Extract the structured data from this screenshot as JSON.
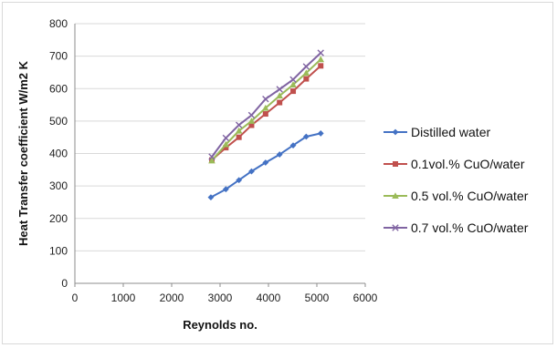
{
  "chart_data": {
    "type": "line",
    "title": "",
    "xlabel": "Reynolds no.",
    "ylabel": "Heat Transfer coefficient W/m2 K",
    "xlim": [
      0,
      6000
    ],
    "ylim": [
      0,
      800
    ],
    "xticks": [
      0,
      1000,
      2000,
      3000,
      4000,
      5000,
      6000
    ],
    "yticks": [
      0,
      100,
      200,
      300,
      400,
      500,
      600,
      700,
      800
    ],
    "grid": "horizontal",
    "legend_position": "right",
    "series": [
      {
        "name": "Distilled water",
        "color": "#4472c4",
        "marker": "diamond",
        "x": [
          2810,
          3120,
          3390,
          3650,
          3940,
          4230,
          4510,
          4780,
          5080
        ],
        "y": [
          265,
          290,
          318,
          345,
          372,
          397,
          425,
          452,
          462
        ]
      },
      {
        "name": "0.1vol.% CuO/water",
        "color": "#c0504d",
        "marker": "square",
        "x": [
          2830,
          3120,
          3390,
          3650,
          3940,
          4230,
          4510,
          4780,
          5080
        ],
        "y": [
          380,
          418,
          450,
          487,
          522,
          557,
          592,
          630,
          670
        ]
      },
      {
        "name": "0.5 vol.% CuO/water",
        "color": "#9bbb59",
        "marker": "triangle",
        "x": [
          2830,
          3120,
          3390,
          3650,
          3940,
          4230,
          4510,
          4780,
          5080
        ],
        "y": [
          378,
          428,
          470,
          500,
          540,
          578,
          612,
          648,
          690
        ]
      },
      {
        "name": "0.7 vol.% CuO/water",
        "color": "#8064a2",
        "marker": "x",
        "x": [
          2830,
          3120,
          3390,
          3650,
          3940,
          4230,
          4510,
          4780,
          5080
        ],
        "y": [
          390,
          448,
          488,
          518,
          568,
          598,
          628,
          668,
          710
        ]
      }
    ]
  }
}
